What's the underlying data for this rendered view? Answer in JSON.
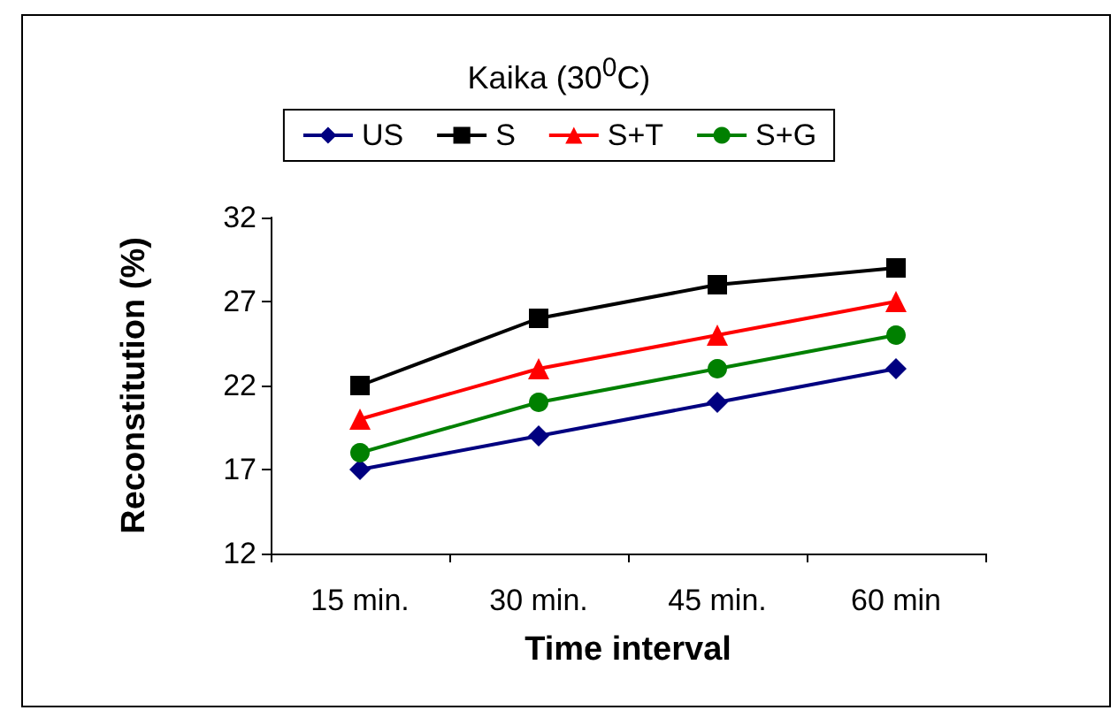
{
  "chart_data": {
    "type": "line",
    "title": "Kaika (30$^{0}$C)",
    "xlabel": "Time interval",
    "ylabel": "Reconstitution (%)",
    "categories": [
      "15 min.",
      "30 min.",
      "45 min.",
      "60 min"
    ],
    "series": [
      {
        "name": "US",
        "color": "#000080",
        "marker": "diamond",
        "values": [
          17,
          19,
          21,
          23
        ]
      },
      {
        "name": "S",
        "color": "#000000",
        "marker": "square",
        "values": [
          22,
          26,
          28,
          29
        ]
      },
      {
        "name": "S+T",
        "color": "#ff0000",
        "marker": "triangle",
        "values": [
          20,
          23,
          25,
          27
        ]
      },
      {
        "name": "S+G",
        "color": "#008000",
        "marker": "circle",
        "values": [
          18,
          21,
          23,
          25
        ]
      }
    ],
    "ylim": [
      12,
      32
    ],
    "yticks": [
      12,
      17,
      22,
      27,
      32
    ],
    "grid": false,
    "legend": "top",
    "line_style": "solid"
  }
}
